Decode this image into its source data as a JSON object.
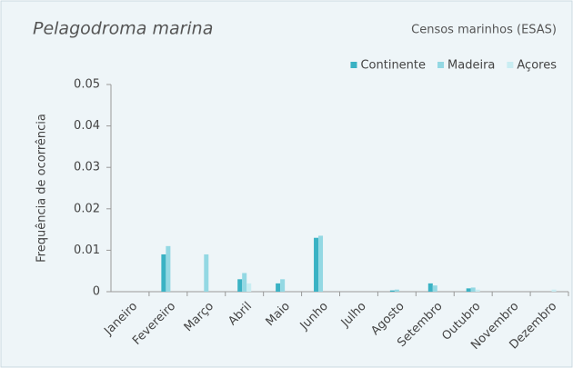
{
  "chart_data": {
    "type": "bar",
    "title": "Pelagodroma marina",
    "subtitle": "Censos marinhos (ESAS)",
    "y_label": "Frequência de ocorrência",
    "categories": [
      "Janeiro",
      "Fevereiro",
      "Março",
      "Abril",
      "Maio",
      "Junho",
      "Julho",
      "Agosto",
      "Setembro",
      "Outubro",
      "Novembro",
      "Dezembro"
    ],
    "series": [
      {
        "name": "Continente",
        "color": "#3ab2c4",
        "values": [
          0,
          0.009,
          0,
          0.003,
          0.002,
          0.013,
          0,
          0.0003,
          0.002,
          0.0008,
          0,
          0
        ]
      },
      {
        "name": "Madeira",
        "color": "#93d8e3",
        "values": [
          0,
          0.011,
          0.009,
          0.0045,
          0.003,
          0.0135,
          0,
          0.0005,
          0.0015,
          0.001,
          0,
          0
        ]
      },
      {
        "name": "Açores",
        "color": "#c9edf2",
        "values": [
          0,
          0,
          0,
          0.002,
          0,
          0,
          0,
          0,
          0,
          0.0005,
          0,
          0.0005
        ]
      }
    ],
    "ylim": [
      0,
      0.05
    ],
    "yticks": [
      0,
      0.01,
      0.02,
      0.03,
      0.04,
      0.05
    ]
  }
}
